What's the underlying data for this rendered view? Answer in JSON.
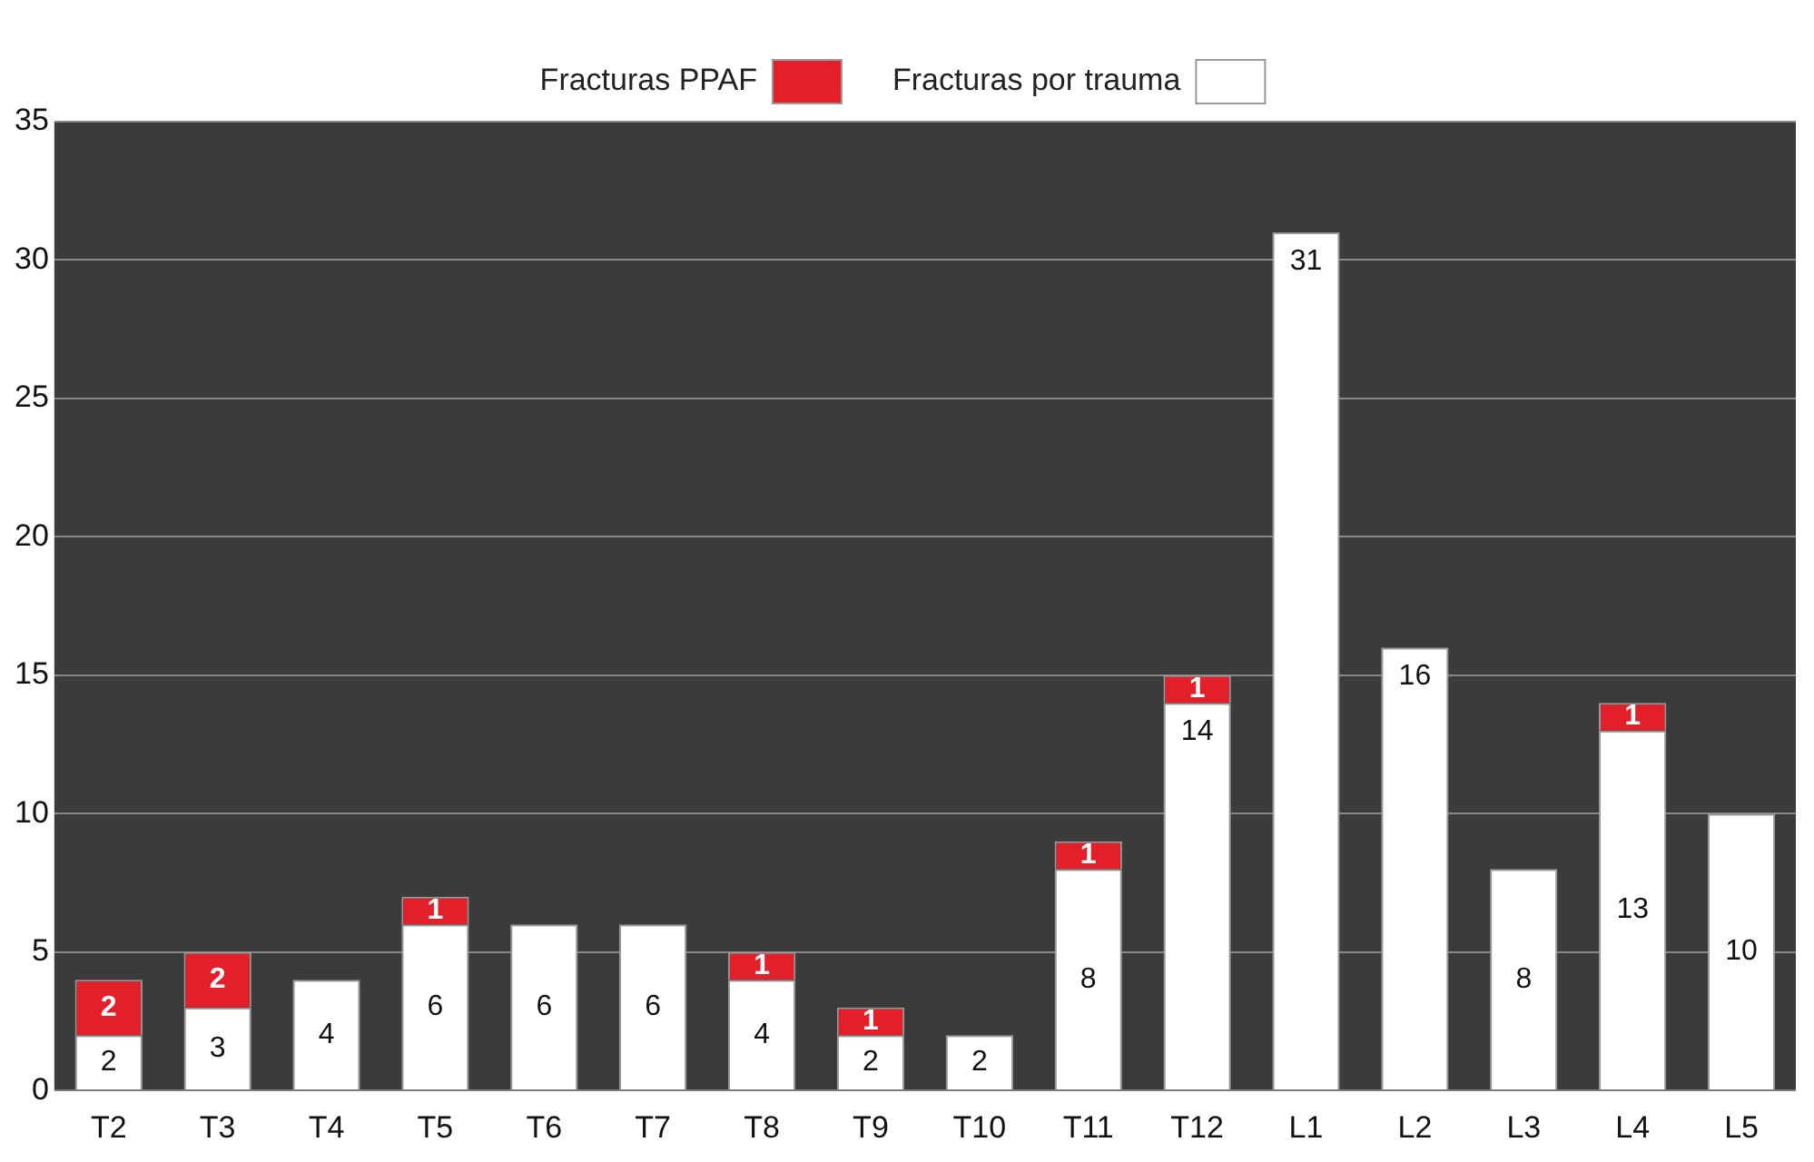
{
  "chart_data": {
    "type": "bar",
    "stacked": true,
    "categories": [
      "T2",
      "T3",
      "T4",
      "T5",
      "T6",
      "T7",
      "T8",
      "T9",
      "T10",
      "T11",
      "T12",
      "L1",
      "L2",
      "L3",
      "L4",
      "L5"
    ],
    "series": [
      {
        "name": "Fracturas por trauma",
        "color": "#ffffff",
        "values": [
          2,
          3,
          4,
          6,
          6,
          6,
          4,
          2,
          2,
          8,
          14,
          31,
          16,
          8,
          13,
          10
        ]
      },
      {
        "name": "Fracturas PPAF",
        "color": "#e3202a",
        "values": [
          2,
          2,
          null,
          1,
          null,
          null,
          1,
          1,
          null,
          1,
          1,
          null,
          null,
          null,
          1,
          null
        ]
      }
    ],
    "ylim": [
      0,
      35
    ],
    "yticks": [
      0,
      5,
      10,
      15,
      20,
      25,
      30,
      35
    ],
    "grid": "y",
    "legend": "top",
    "data_labels": true
  }
}
